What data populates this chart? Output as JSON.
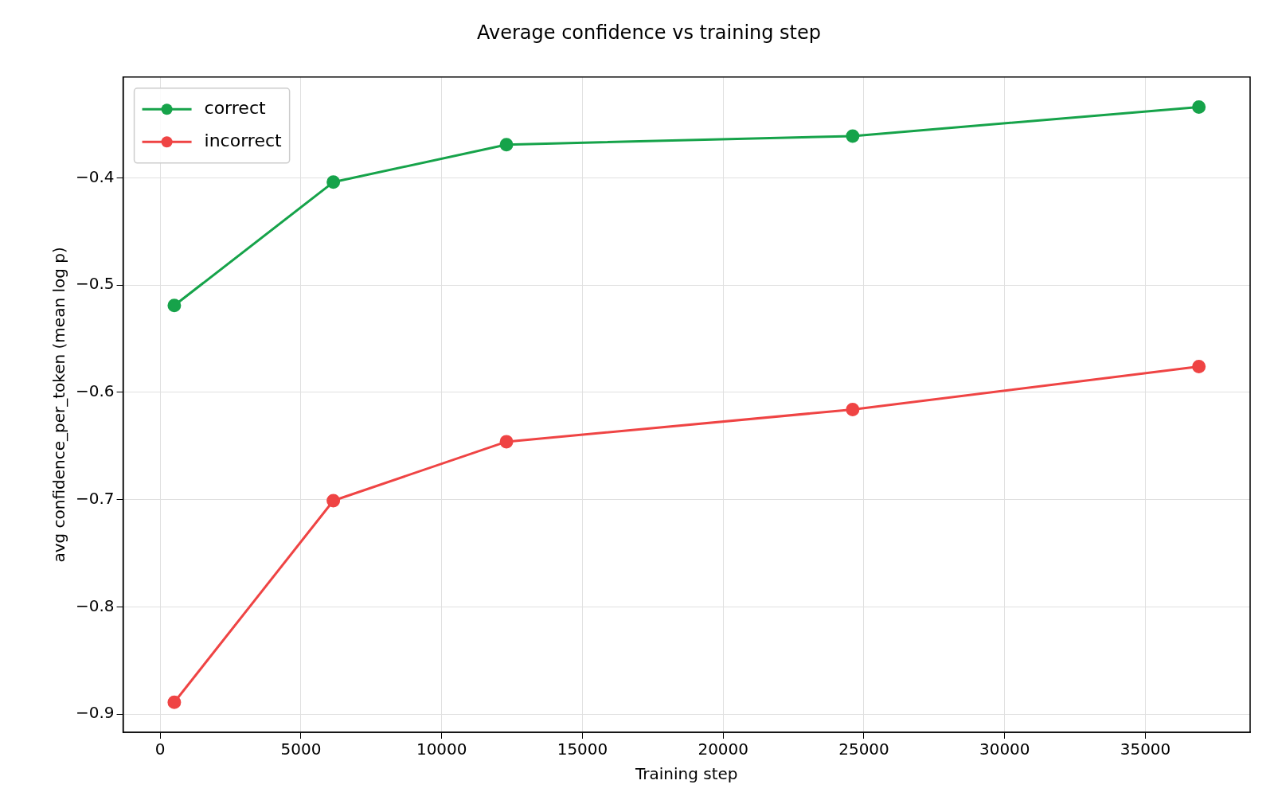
{
  "chart_data": {
    "type": "line",
    "title": "Average confidence vs training step",
    "xlabel": "Training step",
    "ylabel": "avg confidence_per_token (mean log p)",
    "x": [
      500,
      6150,
      12300,
      24600,
      36900
    ],
    "series": [
      {
        "name": "correct",
        "color": "#16a34a",
        "values": [
          -0.519,
          -0.404,
          -0.369,
          -0.361,
          -0.334
        ]
      },
      {
        "name": "incorrect",
        "color": "#ef4444",
        "values": [
          -0.889,
          -0.701,
          -0.646,
          -0.616,
          -0.576
        ]
      }
    ],
    "xlim": [
      -1320,
      38720
    ],
    "xticks": [
      0,
      5000,
      10000,
      15000,
      20000,
      25000,
      30000,
      35000
    ],
    "ylim": [
      -0.917,
      -0.306
    ],
    "yticks": [
      {
        "value": -0.9,
        "label": "−0.9"
      },
      {
        "value": -0.8,
        "label": "−0.8"
      },
      {
        "value": -0.7,
        "label": "−0.7"
      },
      {
        "value": -0.6,
        "label": "−0.6"
      },
      {
        "value": -0.5,
        "label": "−0.5"
      },
      {
        "value": -0.4,
        "label": "−0.4"
      }
    ],
    "grid": true,
    "legend": "top left",
    "marker": "circle",
    "line_style": "solid"
  }
}
